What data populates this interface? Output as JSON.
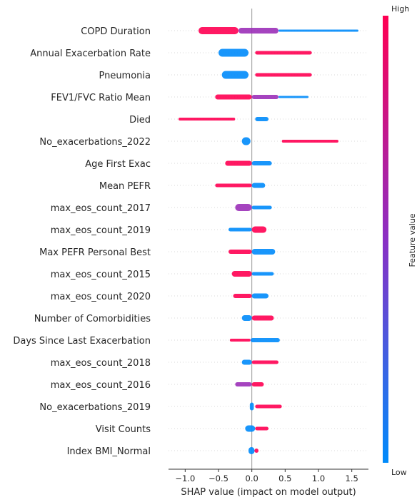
{
  "chart_data": {
    "type": "scatter",
    "subtype": "shap-beeswarm",
    "xlabel": "SHAP value (impact on model output)",
    "xticks": [
      -1.0,
      -0.5,
      0.0,
      0.5,
      1.0,
      1.5
    ],
    "xtick_labels": [
      "−1.0",
      "−0.5",
      "0.0",
      "0.5",
      "1.0",
      "1.5"
    ],
    "xlim": [
      -1.25,
      1.75
    ],
    "colorbar": {
      "title": "Feature value",
      "high_label": "High",
      "low_label": "Low",
      "low_color": "#008bfb",
      "high_color": "#ff0052"
    },
    "features": [
      {
        "name": "COPD Duration",
        "segments": [
          {
            "from": -0.8,
            "to": -0.2,
            "color": "#ff0052",
            "width": 10
          },
          {
            "from": -0.2,
            "to": 0.4,
            "color": "#9b30b8",
            "width": 8
          },
          {
            "from": 0.4,
            "to": 1.6,
            "color": "#008bfb",
            "width": 3
          }
        ]
      },
      {
        "name": "Annual Exacerbation Rate",
        "segments": [
          {
            "from": -0.5,
            "to": -0.05,
            "color": "#008bfb",
            "width": 11
          },
          {
            "from": 0.05,
            "to": 0.9,
            "color": "#ff0052",
            "width": 5
          }
        ]
      },
      {
        "name": "Pneumonia",
        "segments": [
          {
            "from": -0.45,
            "to": -0.05,
            "color": "#008bfb",
            "width": 11
          },
          {
            "from": 0.05,
            "to": 0.9,
            "color": "#ff0052",
            "width": 5
          }
        ]
      },
      {
        "name": "FEV1/FVC Ratio Mean",
        "segments": [
          {
            "from": -0.55,
            "to": 0.0,
            "color": "#ff0052",
            "width": 7
          },
          {
            "from": 0.0,
            "to": 0.4,
            "color": "#9b30b8",
            "width": 6
          },
          {
            "from": 0.4,
            "to": 0.85,
            "color": "#008bfb",
            "width": 3
          }
        ]
      },
      {
        "name": "Died",
        "segments": [
          {
            "from": -1.1,
            "to": -0.25,
            "color": "#ff0052",
            "width": 4
          },
          {
            "from": 0.05,
            "to": 0.25,
            "color": "#008bfb",
            "width": 6
          }
        ]
      },
      {
        "name": "No_exacerbations_2022",
        "segments": [
          {
            "from": -0.15,
            "to": -0.02,
            "color": "#008bfb",
            "width": 11
          },
          {
            "from": 0.45,
            "to": 1.3,
            "color": "#ff0052",
            "width": 4
          }
        ]
      },
      {
        "name": "Age First Exac",
        "segments": [
          {
            "from": -0.4,
            "to": 0.0,
            "color": "#ff0052",
            "width": 7
          },
          {
            "from": 0.0,
            "to": 0.3,
            "color": "#008bfb",
            "width": 6
          }
        ]
      },
      {
        "name": "Mean PEFR",
        "segments": [
          {
            "from": -0.55,
            "to": 0.0,
            "color": "#ff0052",
            "width": 5
          },
          {
            "from": 0.0,
            "to": 0.2,
            "color": "#008bfb",
            "width": 7
          }
        ]
      },
      {
        "name": "max_eos_count_2017",
        "segments": [
          {
            "from": -0.25,
            "to": 0.0,
            "color": "#9b30b8",
            "width": 10
          },
          {
            "from": 0.0,
            "to": 0.3,
            "color": "#008bfb",
            "width": 5
          }
        ]
      },
      {
        "name": "max_eos_count_2019",
        "segments": [
          {
            "from": -0.35,
            "to": 0.0,
            "color": "#008bfb",
            "width": 5
          },
          {
            "from": 0.0,
            "to": 0.22,
            "color": "#ff0052",
            "width": 9
          }
        ]
      },
      {
        "name": "Max PEFR Personal Best",
        "segments": [
          {
            "from": -0.35,
            "to": 0.0,
            "color": "#ff0052",
            "width": 6
          },
          {
            "from": 0.0,
            "to": 0.35,
            "color": "#008bfb",
            "width": 8
          }
        ]
      },
      {
        "name": "max_eos_count_2015",
        "segments": [
          {
            "from": -0.3,
            "to": 0.0,
            "color": "#ff0052",
            "width": 8
          },
          {
            "from": 0.0,
            "to": 0.33,
            "color": "#008bfb",
            "width": 5
          }
        ]
      },
      {
        "name": "max_eos_count_2020",
        "segments": [
          {
            "from": -0.28,
            "to": 0.0,
            "color": "#ff0052",
            "width": 6
          },
          {
            "from": 0.0,
            "to": 0.25,
            "color": "#008bfb",
            "width": 7
          }
        ]
      },
      {
        "name": "Number of Comorbidities",
        "segments": [
          {
            "from": -0.15,
            "to": 0.0,
            "color": "#008bfb",
            "width": 8
          },
          {
            "from": 0.0,
            "to": 0.33,
            "color": "#ff0052",
            "width": 7
          }
        ]
      },
      {
        "name": "Days Since Last Exacerbation",
        "segments": [
          {
            "from": -0.33,
            "to": -0.02,
            "color": "#ff0052",
            "width": 4
          },
          {
            "from": -0.02,
            "to": 0.42,
            "color": "#008bfb",
            "width": 6
          }
        ]
      },
      {
        "name": "max_eos_count_2018",
        "segments": [
          {
            "from": -0.15,
            "to": 0.0,
            "color": "#008bfb",
            "width": 7
          },
          {
            "from": 0.0,
            "to": 0.4,
            "color": "#ff0052",
            "width": 5
          }
        ]
      },
      {
        "name": "max_eos_count_2016",
        "segments": [
          {
            "from": -0.25,
            "to": 0.0,
            "color": "#9b30b8",
            "width": 6
          },
          {
            "from": 0.0,
            "to": 0.18,
            "color": "#ff0052",
            "width": 6
          }
        ]
      },
      {
        "name": "No_exacerbations_2019",
        "segments": [
          {
            "from": -0.03,
            "to": 0.03,
            "color": "#008bfb",
            "width": 11
          },
          {
            "from": 0.05,
            "to": 0.45,
            "color": "#ff0052",
            "width": 5
          }
        ]
      },
      {
        "name": "Visit Counts",
        "segments": [
          {
            "from": -0.1,
            "to": 0.05,
            "color": "#008bfb",
            "width": 9
          },
          {
            "from": 0.05,
            "to": 0.25,
            "color": "#ff0052",
            "width": 5
          }
        ]
      },
      {
        "name": "Index BMI_Normal",
        "segments": [
          {
            "from": -0.05,
            "to": 0.04,
            "color": "#008bfb",
            "width": 10
          },
          {
            "from": 0.04,
            "to": 0.1,
            "color": "#ff0052",
            "width": 6
          }
        ]
      }
    ]
  }
}
